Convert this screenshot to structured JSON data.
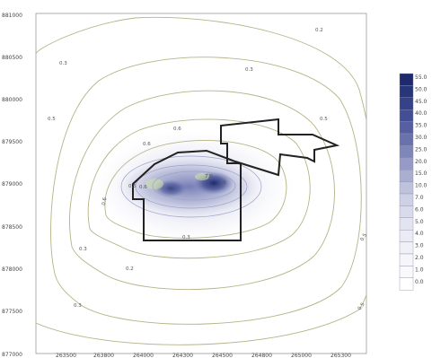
{
  "map": {
    "y_axis_ticks": [
      "881000",
      "880500",
      "880000",
      "879500",
      "879000",
      "878500",
      "878000",
      "877500",
      "877000"
    ],
    "x_axis_ticks": [
      "263500",
      "263800",
      "264000",
      "264300",
      "264500",
      "264800",
      "265000",
      "265300"
    ],
    "contour_labels": [
      {
        "id": "a",
        "text": "0.2"
      },
      {
        "id": "b",
        "text": "0.3"
      },
      {
        "id": "c",
        "text": "0.3"
      },
      {
        "id": "d",
        "text": "0.5"
      },
      {
        "id": "e",
        "text": "0.5"
      },
      {
        "id": "f",
        "text": "0.6"
      },
      {
        "id": "g",
        "text": "0.6"
      },
      {
        "id": "h",
        "text": "0.5"
      },
      {
        "id": "i",
        "text": "0.6"
      },
      {
        "id": "j",
        "text": "7.0"
      },
      {
        "id": "k",
        "text": "7.0"
      },
      {
        "id": "l",
        "text": "0.6"
      },
      {
        "id": "m",
        "text": "0.3"
      },
      {
        "id": "n",
        "text": "0.3"
      },
      {
        "id": "o",
        "text": "0.5"
      },
      {
        "id": "p",
        "text": "0.2"
      },
      {
        "id": "q",
        "text": "0.5"
      },
      {
        "id": "r",
        "text": "0.3"
      }
    ]
  },
  "legend": {
    "items": [
      {
        "label": "55.0",
        "color": "#1e2a6b"
      },
      {
        "label": "50.0",
        "color": "#27357a"
      },
      {
        "label": "45.0",
        "color": "#334289"
      },
      {
        "label": "40.0",
        "color": "#434f95"
      },
      {
        "label": "35.0",
        "color": "#555fa1"
      },
      {
        "label": "30.0",
        "color": "#6a72ae"
      },
      {
        "label": "25.0",
        "color": "#7f87ba"
      },
      {
        "label": "20.0",
        "color": "#959bc6"
      },
      {
        "label": "15.0",
        "color": "#aaafd2"
      },
      {
        "label": "10.0",
        "color": "#bec2dd"
      },
      {
        "label": "7.0",
        "color": "#ced1e6"
      },
      {
        "label": "6.0",
        "color": "#d9dbec"
      },
      {
        "label": "5.0",
        "color": "#e2e4f1"
      },
      {
        "label": "4.0",
        "color": "#eaebf5"
      },
      {
        "label": "3.0",
        "color": "#f0f1f8"
      },
      {
        "label": "2.0",
        "color": "#f5f5fa"
      },
      {
        "label": "1.0",
        "color": "#f9f9fc"
      },
      {
        "label": "0.0",
        "color": "#ffffff"
      }
    ]
  }
}
